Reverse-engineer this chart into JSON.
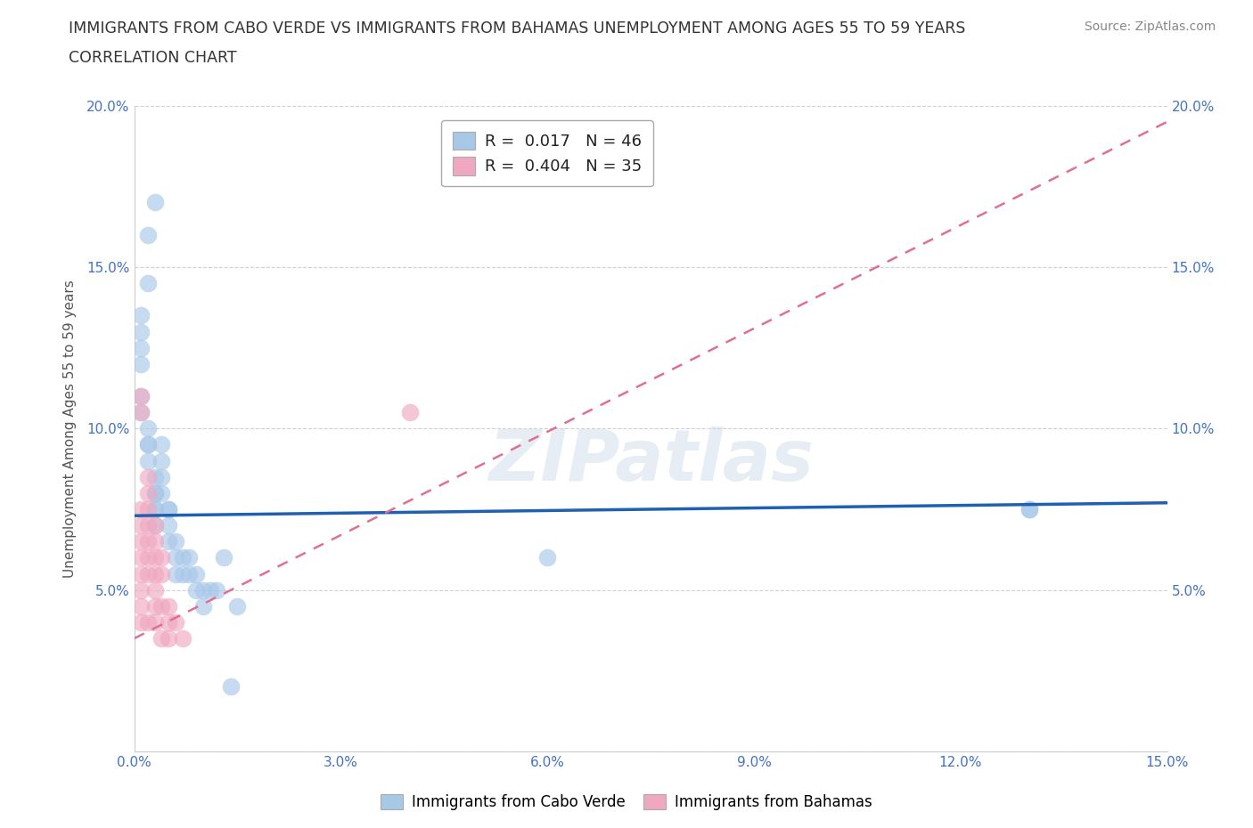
{
  "title_line1": "IMMIGRANTS FROM CABO VERDE VS IMMIGRANTS FROM BAHAMAS UNEMPLOYMENT AMONG AGES 55 TO 59 YEARS",
  "title_line2": "CORRELATION CHART",
  "source_text": "Source: ZipAtlas.com",
  "ylabel": "Unemployment Among Ages 55 to 59 years",
  "xlim": [
    0,
    0.15
  ],
  "ylim": [
    0,
    0.2
  ],
  "xticks": [
    0.0,
    0.03,
    0.06,
    0.09,
    0.12,
    0.15
  ],
  "yticks": [
    0.0,
    0.05,
    0.1,
    0.15,
    0.2
  ],
  "xtick_labels": [
    "0.0%",
    "3.0%",
    "6.0%",
    "9.0%",
    "12.0%",
    "15.0%"
  ],
  "ytick_labels": [
    "",
    "5.0%",
    "10.0%",
    "15.0%",
    "20.0%"
  ],
  "legend1_label": "Immigrants from Cabo Verde",
  "legend2_label": "Immigrants from Bahamas",
  "r1": 0.017,
  "n1": 46,
  "r2": 0.404,
  "n2": 35,
  "color1": "#a8c8e8",
  "color2": "#f0a8c0",
  "line1_color": "#2060b0",
  "line2_color": "#e07090",
  "cabo_verde_x": [
    0.003,
    0.002,
    0.002,
    0.001,
    0.001,
    0.001,
    0.001,
    0.001,
    0.001,
    0.002,
    0.002,
    0.002,
    0.002,
    0.003,
    0.003,
    0.003,
    0.003,
    0.003,
    0.003,
    0.004,
    0.004,
    0.004,
    0.004,
    0.005,
    0.005,
    0.005,
    0.005,
    0.006,
    0.006,
    0.006,
    0.007,
    0.007,
    0.008,
    0.008,
    0.009,
    0.009,
    0.01,
    0.01,
    0.011,
    0.012,
    0.013,
    0.014,
    0.015,
    0.13,
    0.13,
    0.06
  ],
  "cabo_verde_y": [
    0.17,
    0.16,
    0.145,
    0.135,
    0.13,
    0.125,
    0.12,
    0.11,
    0.105,
    0.1,
    0.095,
    0.095,
    0.09,
    0.085,
    0.08,
    0.08,
    0.075,
    0.075,
    0.07,
    0.095,
    0.09,
    0.085,
    0.08,
    0.075,
    0.075,
    0.07,
    0.065,
    0.065,
    0.06,
    0.055,
    0.06,
    0.055,
    0.06,
    0.055,
    0.055,
    0.05,
    0.05,
    0.045,
    0.05,
    0.05,
    0.06,
    0.02,
    0.045,
    0.075,
    0.075,
    0.06
  ],
  "bahamas_x": [
    0.001,
    0.001,
    0.001,
    0.001,
    0.001,
    0.001,
    0.001,
    0.001,
    0.001,
    0.001,
    0.002,
    0.002,
    0.002,
    0.002,
    0.002,
    0.002,
    0.002,
    0.002,
    0.003,
    0.003,
    0.003,
    0.003,
    0.003,
    0.003,
    0.003,
    0.004,
    0.004,
    0.004,
    0.004,
    0.005,
    0.005,
    0.005,
    0.006,
    0.007,
    0.04
  ],
  "bahamas_y": [
    0.11,
    0.105,
    0.075,
    0.07,
    0.065,
    0.06,
    0.055,
    0.05,
    0.045,
    0.04,
    0.085,
    0.08,
    0.075,
    0.07,
    0.065,
    0.06,
    0.055,
    0.04,
    0.07,
    0.065,
    0.06,
    0.055,
    0.05,
    0.045,
    0.04,
    0.06,
    0.055,
    0.045,
    0.035,
    0.045,
    0.04,
    0.035,
    0.04,
    0.035,
    0.105
  ],
  "cabo_line_x": [
    0.0,
    0.15
  ],
  "cabo_line_y": [
    0.073,
    0.077
  ],
  "bahamas_line_x": [
    0.0,
    0.15
  ],
  "bahamas_line_y": [
    0.035,
    0.195
  ],
  "watermark": "ZIPatlas",
  "background_color": "#ffffff",
  "grid_color": "#cccccc"
}
